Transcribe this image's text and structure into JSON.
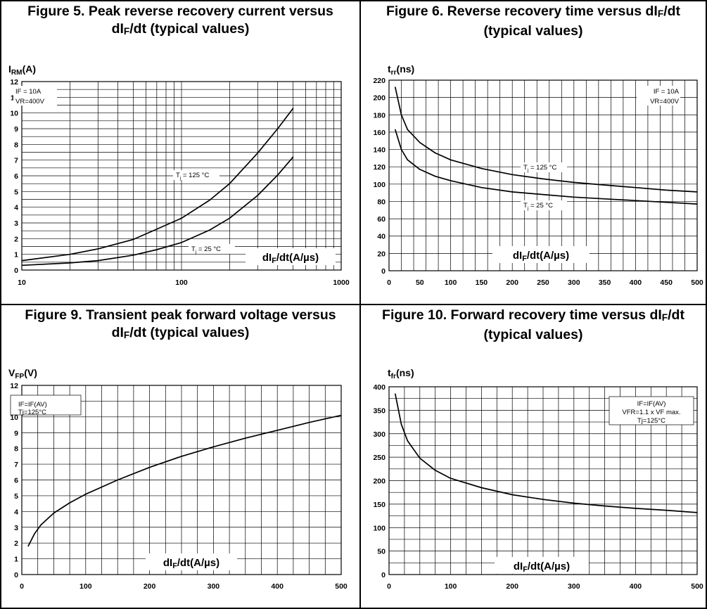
{
  "panels": [
    {
      "title_line1": "Figure 5. Peak reverse recovery current versus",
      "title_line2": "dIF/dt (typical values)"
    },
    {
      "title_line1": "Figure 6. Reverse recovery time versus dIF/dt",
      "title_line2": "(typical values)"
    },
    {
      "title_line1": "Figure 9. Transient peak forward voltage versus",
      "title_line2": "dIF/dt (typical values)"
    },
    {
      "title_line1": "Figure 10. Forward recovery time versus dIF/dt",
      "title_line2": "(typical values)"
    }
  ],
  "chart_data": [
    {
      "type": "line",
      "title": "Figure 5. Peak reverse recovery current versus dIF/dt (typical values)",
      "xlabel": "dIF/dt(A/µs)",
      "ylabel": "IRM(A)",
      "x_scale": "log",
      "xlim": [
        10,
        1000
      ],
      "ylim": [
        0,
        12
      ],
      "x_ticks": [
        "10",
        "100",
        "1000"
      ],
      "y_ticks": [
        "0",
        "1",
        "2",
        "3",
        "4",
        "5",
        "6",
        "7",
        "8",
        "9",
        "10",
        "11",
        "12"
      ],
      "grid": true,
      "annotations": [
        "IF = 10A",
        "VR=400V"
      ],
      "series": [
        {
          "name": "Tj = 125 °C",
          "x": [
            10,
            20,
            30,
            50,
            70,
            100,
            150,
            200,
            300,
            400,
            500
          ],
          "y": [
            0.6,
            1.0,
            1.35,
            1.95,
            2.6,
            3.3,
            4.45,
            5.5,
            7.45,
            9.0,
            10.3
          ]
        },
        {
          "name": "Tj = 25 °C",
          "x": [
            10,
            20,
            30,
            50,
            70,
            100,
            150,
            200,
            300,
            400,
            500
          ],
          "y": [
            0.3,
            0.45,
            0.6,
            0.95,
            1.3,
            1.75,
            2.55,
            3.3,
            4.75,
            6.05,
            7.2
          ]
        }
      ]
    },
    {
      "type": "line",
      "title": "Figure 6. Reverse recovery time versus dIF/dt (typical values)",
      "xlabel": "dIF/dt(A/µs)",
      "ylabel": "trr(ns)",
      "xlim": [
        0,
        500
      ],
      "ylim": [
        0,
        220
      ],
      "x_ticks": [
        "0",
        "50",
        "100",
        "150",
        "200",
        "250",
        "300",
        "350",
        "400",
        "450",
        "500"
      ],
      "y_ticks": [
        "0",
        "20",
        "40",
        "60",
        "80",
        "100",
        "120",
        "140",
        "160",
        "180",
        "200",
        "220"
      ],
      "grid": true,
      "annotations": [
        "IF = 10A",
        "VR=400V"
      ],
      "series": [
        {
          "name": "Tj = 125 °C",
          "x": [
            10,
            20,
            30,
            50,
            75,
            100,
            150,
            200,
            250,
            300,
            350,
            400,
            450,
            500
          ],
          "y": [
            212,
            180,
            163,
            148,
            136,
            128,
            118,
            111,
            106,
            102,
            99,
            96,
            93,
            91
          ]
        },
        {
          "name": "Tj = 25 °C",
          "x": [
            10,
            20,
            30,
            50,
            75,
            100,
            150,
            200,
            250,
            300,
            350,
            400,
            450,
            500
          ],
          "y": [
            163,
            140,
            128,
            117,
            109,
            104,
            96,
            91,
            88,
            85,
            83,
            81,
            79,
            77
          ]
        }
      ]
    },
    {
      "type": "line",
      "title": "Figure 9. Transient peak forward voltage versus dIF/dt (typical values)",
      "xlabel": "dIF/dt(A/µs)",
      "ylabel": "VFP(V)",
      "xlim": [
        0,
        500
      ],
      "ylim": [
        0,
        12
      ],
      "x_ticks": [
        "0",
        "100",
        "200",
        "300",
        "400",
        "500"
      ],
      "y_ticks": [
        "0",
        "1",
        "2",
        "3",
        "4",
        "5",
        "6",
        "7",
        "8",
        "9",
        "10",
        "11",
        "12"
      ],
      "grid": true,
      "annotations": [
        "IF=IF(AV)",
        "Tj=125°C"
      ],
      "series": [
        {
          "name": "",
          "x": [
            10,
            20,
            30,
            50,
            75,
            100,
            150,
            200,
            250,
            300,
            350,
            400,
            450,
            500
          ],
          "y": [
            1.8,
            2.6,
            3.15,
            3.9,
            4.55,
            5.1,
            6.0,
            6.8,
            7.5,
            8.1,
            8.65,
            9.15,
            9.65,
            10.1
          ]
        }
      ]
    },
    {
      "type": "line",
      "title": "Figure 10. Forward recovery time versus dIF/dt (typical values)",
      "xlabel": "dIF/dt(A/µs)",
      "ylabel": "tfr(ns)",
      "xlim": [
        0,
        500
      ],
      "ylim": [
        0,
        400
      ],
      "x_ticks": [
        "0",
        "100",
        "200",
        "300",
        "400",
        "500"
      ],
      "y_ticks": [
        "0",
        "50",
        "100",
        "150",
        "200",
        "250",
        "300",
        "350",
        "400"
      ],
      "grid": true,
      "annotations": [
        "IF=IF(AV)",
        "VFR=1.1 x VF max.",
        "Tj=125°C"
      ],
      "series": [
        {
          "name": "",
          "x": [
            10,
            20,
            30,
            50,
            75,
            100,
            150,
            200,
            250,
            300,
            350,
            400,
            450,
            500
          ],
          "y": [
            385,
            320,
            285,
            248,
            222,
            205,
            185,
            170,
            160,
            152,
            146,
            141,
            137,
            132
          ]
        }
      ]
    }
  ]
}
